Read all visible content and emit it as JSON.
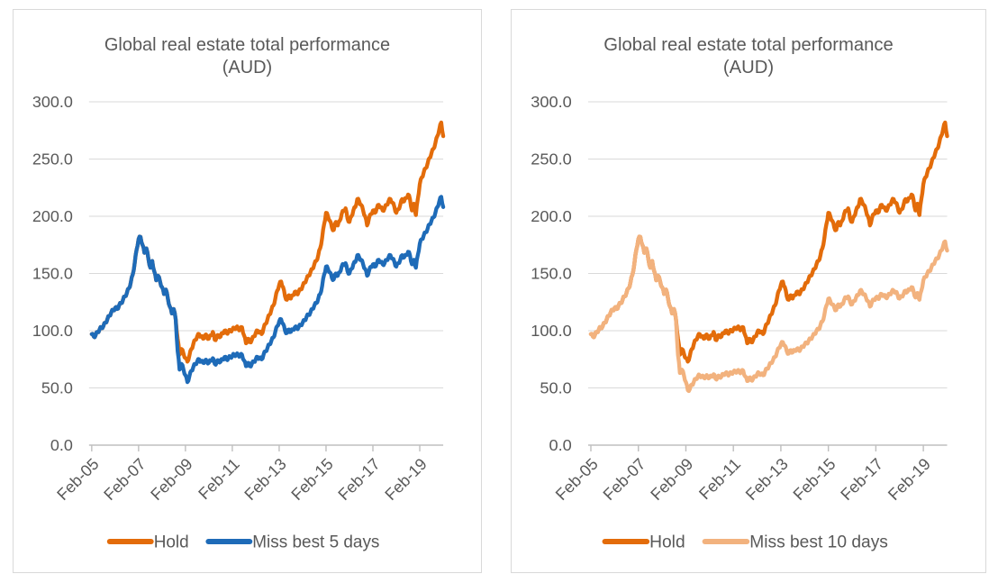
{
  "colors": {
    "hold": "#E36C0A",
    "miss_best_5_days": "#1E6BB8",
    "miss_best_10_days": "#F2B27E",
    "gridline": "#D9D9D9",
    "axis_line": "#BFBFBF",
    "text": "#595959",
    "panel_border": "#D9D9D9",
    "background": "#FFFFFF"
  },
  "chart_data": [
    {
      "type": "line",
      "title": "Global real estate total performance (AUD)",
      "title_lines": [
        "Global real estate total performance",
        "(AUD)"
      ],
      "x_start": "Feb-2005",
      "x_end": "Feb-2020",
      "x_frequency": "monthly",
      "x_tick_labels": [
        "Feb-05",
        "Feb-07",
        "Feb-09",
        "Feb-11",
        "Feb-13",
        "Feb-15",
        "Feb-17",
        "Feb-19"
      ],
      "x_tick_month_indices": [
        0,
        24,
        48,
        72,
        96,
        120,
        144,
        168
      ],
      "y_ticks": [
        0,
        50,
        100,
        150,
        200,
        250,
        300
      ],
      "y_tick_labels": [
        "0.0",
        "50.0",
        "100.0",
        "150.0",
        "200.0",
        "250.0",
        "300.0"
      ],
      "ylim": [
        0,
        300
      ],
      "grid": "horizontal",
      "legend_position": "bottom",
      "series": [
        {
          "name": "Hold",
          "color": "#E36C0A",
          "values": [
            97,
            95,
            96,
            99,
            101,
            103,
            104,
            107,
            110,
            113,
            116,
            118,
            120,
            119,
            122,
            124,
            127,
            130,
            133,
            137,
            142,
            149,
            159,
            171,
            180,
            182,
            175,
            168,
            172,
            163,
            155,
            161,
            152,
            144,
            148,
            143,
            138,
            132,
            136,
            128,
            121,
            115,
            119,
            110,
            93,
            79,
            84,
            80,
            76,
            73,
            78,
            84,
            88,
            92,
            95,
            97,
            95,
            93,
            96,
            95,
            93,
            96,
            99,
            92,
            94,
            96,
            95,
            98,
            100,
            98,
            99,
            100,
            101,
            102,
            103,
            102,
            101,
            103,
            96,
            89,
            93,
            90,
            92,
            95,
            98,
            100,
            99,
            97,
            102,
            106,
            110,
            114,
            118,
            122,
            128,
            135,
            140,
            143,
            138,
            130,
            127,
            131,
            128,
            131,
            134,
            132,
            134,
            136,
            139,
            142,
            145,
            148,
            151,
            154,
            158,
            161,
            166,
            172,
            181,
            193,
            203,
            200,
            196,
            190,
            188,
            195,
            192,
            196,
            202,
            205,
            207,
            198,
            195,
            200,
            205,
            208,
            215,
            213,
            210,
            205,
            200,
            192,
            198,
            202,
            205,
            203,
            207,
            210,
            208,
            205,
            207,
            210,
            213,
            215,
            212,
            208,
            203,
            206,
            210,
            215,
            213,
            216,
            219,
            215,
            205,
            211,
            201,
            215,
            228,
            234,
            238,
            242,
            246,
            251,
            255,
            259,
            264,
            270,
            276,
            282,
            270
          ]
        },
        {
          "name": "Miss best 5 days",
          "color": "#1E6BB8",
          "values": [
            97,
            95,
            96,
            99,
            101,
            103,
            104,
            107,
            110,
            113,
            116,
            118,
            120,
            119,
            122,
            124,
            127,
            130,
            133,
            137,
            142,
            149,
            159,
            171,
            180,
            182,
            175,
            168,
            172,
            163,
            155,
            161,
            152,
            144,
            148,
            143,
            138,
            132,
            136,
            128,
            121,
            115,
            119,
            110,
            82,
            66,
            71,
            66,
            61,
            55,
            60,
            65,
            68,
            71,
            73,
            75,
            73,
            72,
            74,
            73,
            72,
            74,
            76,
            71,
            72,
            74,
            73,
            75,
            77,
            75,
            76,
            77,
            78,
            79,
            79,
            79,
            78,
            79,
            74,
            69,
            72,
            69,
            71,
            73,
            75,
            77,
            76,
            75,
            79,
            82,
            85,
            88,
            91,
            94,
            99,
            104,
            108,
            110,
            106,
            100,
            98,
            101,
            99,
            101,
            103,
            102,
            103,
            105,
            107,
            109,
            112,
            114,
            116,
            119,
            122,
            124,
            128,
            132,
            139,
            149,
            156,
            154,
            151,
            146,
            145,
            150,
            148,
            151,
            156,
            158,
            159,
            152,
            150,
            154,
            158,
            160,
            166,
            164,
            162,
            158,
            154,
            148,
            152,
            156,
            158,
            156,
            159,
            162,
            160,
            158,
            159,
            162,
            164,
            166,
            163,
            160,
            156,
            159,
            162,
            166,
            164,
            166,
            169,
            166,
            158,
            162,
            155,
            166,
            176,
            180,
            183,
            186,
            189,
            193,
            196,
            199,
            203,
            208,
            213,
            217,
            208
          ]
        }
      ]
    },
    {
      "type": "line",
      "title": "Global real estate total performance (AUD)",
      "title_lines": [
        "Global real estate total performance",
        "(AUD)"
      ],
      "x_start": "Feb-2005",
      "x_end": "Feb-2020",
      "x_frequency": "monthly",
      "x_tick_labels": [
        "Feb-05",
        "Feb-07",
        "Feb-09",
        "Feb-11",
        "Feb-13",
        "Feb-15",
        "Feb-17",
        "Feb-19"
      ],
      "x_tick_month_indices": [
        0,
        24,
        48,
        72,
        96,
        120,
        144,
        168
      ],
      "y_ticks": [
        0,
        50,
        100,
        150,
        200,
        250,
        300
      ],
      "y_tick_labels": [
        "0.0",
        "50.0",
        "100.0",
        "150.0",
        "200.0",
        "250.0",
        "300.0"
      ],
      "ylim": [
        0,
        300
      ],
      "grid": "horizontal",
      "legend_position": "bottom",
      "series": [
        {
          "name": "Hold",
          "color": "#E36C0A",
          "values": [
            97,
            95,
            96,
            99,
            101,
            103,
            104,
            107,
            110,
            113,
            116,
            118,
            120,
            119,
            122,
            124,
            127,
            130,
            133,
            137,
            142,
            149,
            159,
            171,
            180,
            182,
            175,
            168,
            172,
            163,
            155,
            161,
            152,
            144,
            148,
            143,
            138,
            132,
            136,
            128,
            121,
            115,
            119,
            110,
            93,
            79,
            84,
            80,
            76,
            73,
            78,
            84,
            88,
            92,
            95,
            97,
            95,
            93,
            96,
            95,
            93,
            96,
            99,
            92,
            94,
            96,
            95,
            98,
            100,
            98,
            99,
            100,
            101,
            102,
            103,
            102,
            101,
            103,
            96,
            89,
            93,
            90,
            92,
            95,
            98,
            100,
            99,
            97,
            102,
            106,
            110,
            114,
            118,
            122,
            128,
            135,
            140,
            143,
            138,
            130,
            127,
            131,
            128,
            131,
            134,
            132,
            134,
            136,
            139,
            142,
            145,
            148,
            151,
            154,
            158,
            161,
            166,
            172,
            181,
            193,
            203,
            200,
            196,
            190,
            188,
            195,
            192,
            196,
            202,
            205,
            207,
            198,
            195,
            200,
            205,
            208,
            215,
            213,
            210,
            205,
            200,
            192,
            198,
            202,
            205,
            203,
            207,
            210,
            208,
            205,
            207,
            210,
            213,
            215,
            212,
            208,
            203,
            206,
            210,
            215,
            213,
            216,
            219,
            215,
            205,
            211,
            201,
            215,
            228,
            234,
            238,
            242,
            246,
            251,
            255,
            259,
            264,
            270,
            276,
            282,
            270
          ]
        },
        {
          "name": "Miss best 10 days",
          "color": "#F2B27E",
          "values": [
            97,
            95,
            96,
            99,
            101,
            103,
            104,
            107,
            110,
            113,
            116,
            118,
            120,
            119,
            122,
            124,
            127,
            130,
            133,
            137,
            142,
            149,
            159,
            171,
            180,
            182,
            175,
            168,
            172,
            163,
            155,
            161,
            152,
            144,
            148,
            143,
            138,
            132,
            136,
            128,
            121,
            115,
            119,
            110,
            79,
            63,
            66,
            61,
            55,
            48,
            49,
            53,
            55,
            58,
            60,
            61,
            60,
            59,
            60,
            60,
            59,
            60,
            62,
            58,
            59,
            60,
            60,
            62,
            63,
            62,
            62,
            63,
            64,
            64,
            65,
            64,
            64,
            65,
            60,
            56,
            59,
            57,
            58,
            60,
            62,
            63,
            62,
            61,
            64,
            67,
            69,
            72,
            74,
            77,
            81,
            85,
            88,
            90,
            87,
            82,
            80,
            83,
            81,
            83,
            84,
            83,
            84,
            86,
            88,
            89,
            91,
            93,
            95,
            97,
            100,
            101,
            105,
            108,
            114,
            122,
            128,
            126,
            123,
            120,
            118,
            123,
            121,
            123,
            127,
            129,
            130,
            125,
            123,
            126,
            129,
            131,
            135,
            134,
            132,
            129,
            126,
            121,
            125,
            127,
            129,
            128,
            130,
            132,
            131,
            129,
            130,
            132,
            134,
            135,
            134,
            131,
            128,
            130,
            132,
            135,
            134,
            136,
            138,
            135,
            129,
            133,
            127,
            135,
            144,
            147,
            150,
            152,
            155,
            158,
            161,
            163,
            166,
            170,
            174,
            178,
            170
          ]
        }
      ]
    }
  ]
}
